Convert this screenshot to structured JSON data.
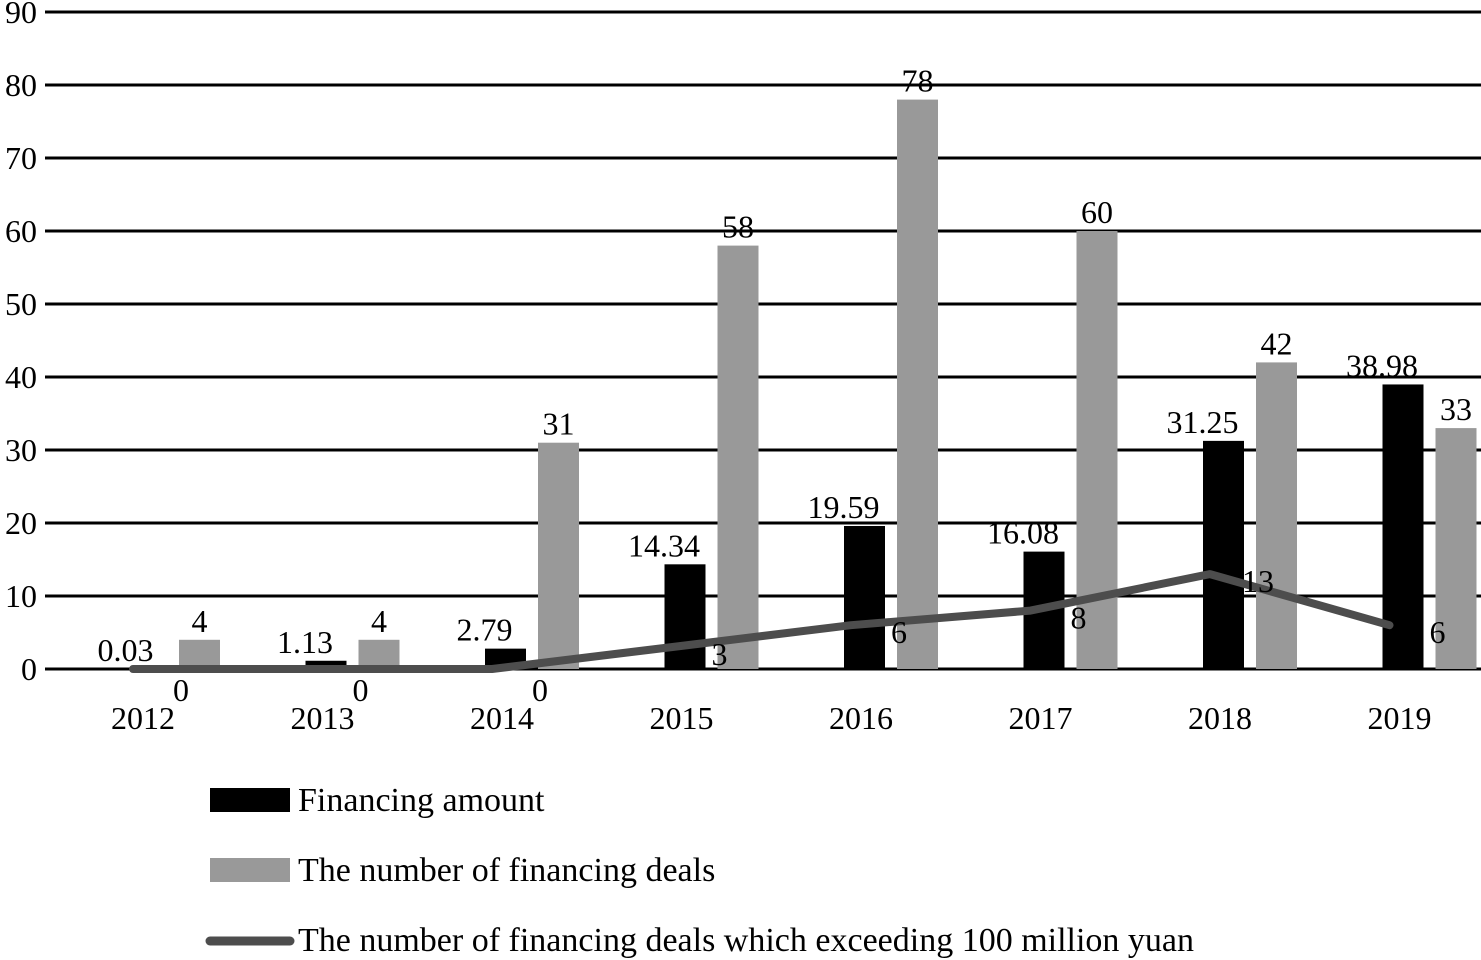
{
  "chart_data": {
    "type": "bar",
    "categories": [
      "2012",
      "2013",
      "2014",
      "2015",
      "2016",
      "2017",
      "2018",
      "2019"
    ],
    "ylim": [
      0,
      90
    ],
    "yticks": [
      0,
      10,
      20,
      30,
      40,
      50,
      60,
      70,
      80,
      90
    ],
    "grid": true,
    "legend_position": "bottom",
    "series": [
      {
        "name": "Financing amount",
        "kind": "bar",
        "color": "#000000",
        "values": [
          0.03,
          1.13,
          2.79,
          14.34,
          19.59,
          16.08,
          31.25,
          38.98
        ],
        "labels": [
          "0.03",
          "1.13",
          "2.79",
          "14.34",
          "19.59",
          "16.08",
          "31.25",
          "38.98"
        ]
      },
      {
        "name": "The number of financing deals",
        "kind": "bar",
        "color": "#999999",
        "values": [
          4,
          4,
          31,
          58,
          78,
          60,
          42,
          33
        ],
        "labels": [
          "4",
          "4",
          "31",
          "58",
          "78",
          "60",
          "42",
          "33"
        ]
      },
      {
        "name": "The number of financing deals which exceeding 100 million yuan",
        "kind": "line",
        "color": "#4d4d4d",
        "values": [
          0,
          0,
          0,
          3,
          6,
          8,
          13,
          6
        ],
        "labels": [
          "0",
          "0",
          "0",
          "3",
          "6",
          "8",
          "13",
          "6"
        ]
      }
    ]
  }
}
